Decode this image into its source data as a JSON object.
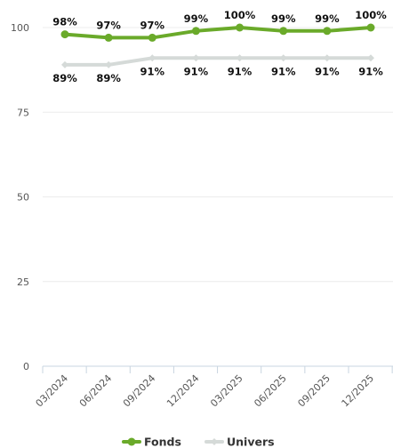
{
  "chart_data": {
    "type": "line",
    "categories": [
      "03/2024",
      "06/2024",
      "09/2024",
      "12/2024",
      "03/2025",
      "06/2025",
      "09/2025",
      "12/2025"
    ],
    "series": [
      {
        "name": "Fonds",
        "color": "#6aaa2a",
        "values": [
          98,
          97,
          97,
          99,
          100,
          99,
          99,
          100
        ],
        "labels": [
          "98%",
          "97%",
          "97%",
          "99%",
          "100%",
          "99%",
          "99%",
          "100%"
        ]
      },
      {
        "name": "Univers",
        "color": "#d5dad8",
        "values": [
          89,
          89,
          91,
          91,
          91,
          91,
          91,
          91
        ],
        "labels": [
          "89%",
          "89%",
          "91%",
          "91%",
          "91%",
          "91%",
          "91%",
          "91%"
        ]
      }
    ],
    "yticks": [
      "0",
      "25",
      "50",
      "75",
      "100"
    ],
    "ylim": [
      0,
      100
    ],
    "grid": true,
    "legend_position": "bottom"
  }
}
